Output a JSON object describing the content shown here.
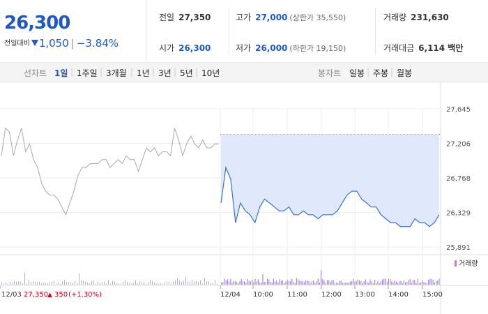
{
  "summary": {
    "price": "26,300",
    "change_label": "전일대비",
    "change_value": "1,050",
    "change_sep": "|",
    "change_pct": "−3.84%",
    "down_color": "#1f57c9"
  },
  "stats": {
    "prev_close": {
      "label": "전일",
      "value": "27,350"
    },
    "open": {
      "label": "시가",
      "value": "26,300"
    },
    "high": {
      "label": "고가",
      "value": "27,000",
      "limit_label": "(상한가 35,550)"
    },
    "low": {
      "label": "저가",
      "value": "26,000",
      "limit_label": "(하한가 19,150)"
    },
    "volume": {
      "label": "거래량",
      "value": "231,630"
    },
    "amount": {
      "label": "거래대금",
      "value": "6,114 백만"
    }
  },
  "tabs": {
    "line_chart_label": "선차트",
    "ranges": [
      "1일",
      "1주일",
      "3개월",
      "1년",
      "3년",
      "5년",
      "10년"
    ],
    "active_range": "1일",
    "candle_chart_label": "봉차트",
    "candle_ranges": [
      "일봉",
      "주봉",
      "월봉"
    ]
  },
  "chart_data": {
    "type": "line",
    "y_ticks": [
      "27,645",
      "27,206",
      "26,768",
      "26,329",
      "25,891"
    ],
    "ylim": [
      25891,
      27645
    ],
    "prev_close_line": 27320,
    "x_ticks": [
      "12/04",
      "10:00",
      "11:00",
      "12:00",
      "13:00",
      "14:00",
      "15:00"
    ],
    "prev_day_footer": {
      "date": "12/03",
      "close": "27,350",
      "arrow": "▲",
      "change": "350",
      "pct": "(+1.30%)"
    },
    "volume_legend": "거래량",
    "series": [
      {
        "values_prev_day": [
          27050,
          27400,
          27350,
          27050,
          27250,
          27400,
          27100,
          27200,
          27000,
          26900,
          26700,
          26600,
          26550,
          26550,
          26500,
          26400,
          26300,
          26450,
          26600,
          26800,
          26900,
          26900,
          26950,
          26950,
          26950,
          27000,
          27000,
          26900,
          26950,
          27000,
          26950,
          27050,
          27000,
          27000,
          26850,
          27000,
          27150,
          27100,
          27150,
          27050,
          27100,
          27100,
          27050,
          27400,
          27250,
          27050,
          27200,
          27300,
          27200,
          27150,
          27250,
          27150,
          27150,
          27200,
          27200
        ]
      },
      {
        "values_today": [
          26450,
          26900,
          26750,
          26200,
          26450,
          26350,
          26300,
          26200,
          26400,
          26500,
          26450,
          26400,
          26350,
          26350,
          26400,
          26300,
          26300,
          26350,
          26300,
          26300,
          26250,
          26300,
          26300,
          26300,
          26350,
          26450,
          26550,
          26600,
          26600,
          26500,
          26450,
          26400,
          26400,
          26300,
          26250,
          26200,
          26200,
          26150,
          26150,
          26150,
          26250,
          26200,
          26200,
          26150,
          26200,
          26300
        ]
      }
    ],
    "colors": {
      "prev_day_line": "#a8a8a8",
      "today_line": "#3a6fd8",
      "area_fill": "#dfe9fb",
      "volume_bar": "#a98ad1",
      "prev_close_line": "#666666"
    }
  }
}
